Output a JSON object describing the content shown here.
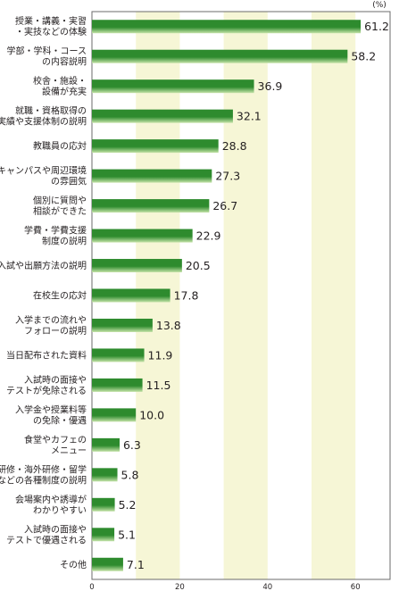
{
  "chart_data": {
    "type": "bar",
    "orientation": "horizontal",
    "unit_label": "(%)",
    "categories": [
      [
        "授業・講義・実習",
        "・実技などの体験"
      ],
      [
        "学部・学科・コース",
        "の内容説明"
      ],
      [
        "校舎・施設・",
        "設備が充実"
      ],
      [
        "就職・資格取得の",
        "実績や支援体制の説明"
      ],
      [
        "教職員の応対"
      ],
      [
        "キャンパスや周辺環境",
        "の雰囲気"
      ],
      [
        "個別に質問や",
        "相談ができた"
      ],
      [
        "学費・学費支援",
        "制度の説明"
      ],
      [
        "入試や出願方法の説明"
      ],
      [
        "在校生の応対"
      ],
      [
        "入学までの流れや",
        "フォローの説明"
      ],
      [
        "当日配布された資料"
      ],
      [
        "入試時の面接や",
        "テストが免除される"
      ],
      [
        "入学金や授業料等",
        "の免除・優遇"
      ],
      [
        "食堂やカフェの",
        "メニュー"
      ],
      [
        "企業研修・海外研修・留学",
        "などの各種制度の説明"
      ],
      [
        "会場案内や誘導が",
        "わかりやすい"
      ],
      [
        "入試時の面接や",
        "テストで優遇される"
      ],
      [
        "その他"
      ]
    ],
    "values": [
      61.2,
      58.2,
      36.9,
      32.1,
      28.8,
      27.3,
      26.7,
      22.9,
      20.5,
      17.8,
      13.8,
      11.9,
      11.5,
      10.0,
      6.3,
      5.8,
      5.2,
      5.1,
      7.1
    ],
    "value_labels": [
      "61.2",
      "58.2",
      "36.9",
      "32.1",
      "28.8",
      "27.3",
      "26.7",
      "22.9",
      "20.5",
      "17.8",
      "13.8",
      "11.9",
      "11.5",
      "10.0",
      "6.3",
      "5.8",
      "5.2",
      "5.1",
      "7.1"
    ],
    "x_ticks": [
      0,
      20,
      40,
      60
    ],
    "xlim": [
      0,
      70
    ],
    "band_color": "#f6f6d6",
    "bar_color_dark": "#2e8b2e",
    "bar_color_light": "#c5e3a8",
    "grid": false
  }
}
